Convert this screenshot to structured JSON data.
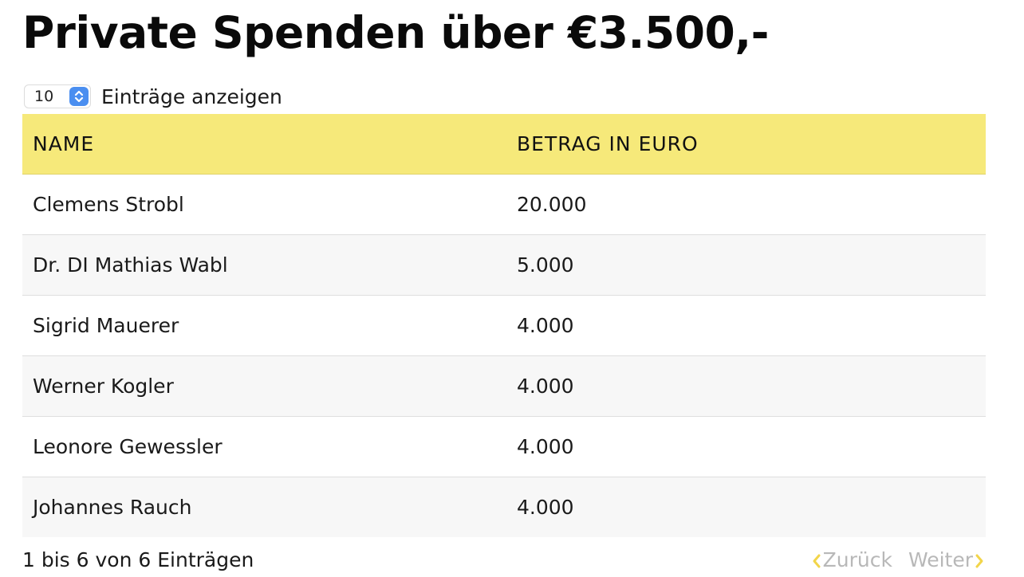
{
  "header": {
    "title": "Private Spenden über €3.500,-"
  },
  "length_control": {
    "selected": "10",
    "label": "Einträge anzeigen"
  },
  "table": {
    "columns": [
      "NAME",
      "BETRAG IN EURO"
    ],
    "rows": [
      {
        "name": "Clemens Strobl",
        "amount": "20.000"
      },
      {
        "name": "Dr. DI Mathias Wabl",
        "amount": "5.000"
      },
      {
        "name": "Sigrid Mauerer",
        "amount": "4.000"
      },
      {
        "name": "Werner Kogler",
        "amount": "4.000"
      },
      {
        "name": "Leonore Gewessler",
        "amount": "4.000"
      },
      {
        "name": "Johannes Rauch",
        "amount": "4.000"
      }
    ]
  },
  "footer": {
    "info": "1 bis 6 von 6 Einträgen",
    "prev_label": "Zurück",
    "next_label": "Weiter"
  },
  "colors": {
    "header_bg": "#f6e97a",
    "select_accent": "#4a8ef0",
    "pager_chevron": "#f2d54a",
    "pager_text_disabled": "#b8b8b8"
  },
  "icons": {
    "select": "updown-chevron-icon",
    "prev": "chevron-left-icon",
    "next": "chevron-right-icon"
  }
}
